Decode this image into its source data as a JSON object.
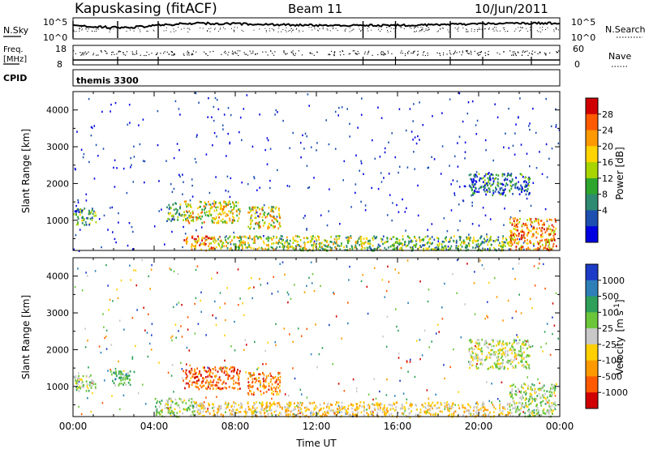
{
  "header": {
    "station": "Kapuskasing (fitACF)",
    "beam": "Beam 11",
    "date": "10/Jun/2011"
  },
  "noise_panel": {
    "left_label": "N.Sky",
    "left_top_tick": "10^5",
    "left_bottom_tick": "10^0",
    "right_top_tick": "10^5",
    "right_bottom_tick": "10^0",
    "right_label": "N.Search"
  },
  "freq_panel": {
    "left_label_line1": "Freq.",
    "left_label_line2": "[MHz]",
    "left_top_tick": "18",
    "left_bottom_tick": "8",
    "right_top_tick": "60",
    "right_bottom_tick": "0",
    "right_label": "Nave"
  },
  "cpid_panel": {
    "label": "CPID",
    "mode": "themis 3300"
  },
  "chart_data": [
    {
      "type": "heatmap",
      "quantity": "power",
      "ylabel": "Slant Range [km]",
      "ylim": [
        180,
        4500
      ],
      "yticks": [
        "1000",
        "2000",
        "3000",
        "4000"
      ],
      "xlim_hours": [
        0,
        24
      ],
      "colorbar": {
        "label": "Power [dB]",
        "ticks": [
          "28",
          "24",
          "20",
          "16",
          "12",
          "8",
          "4"
        ],
        "colors": [
          "#d00000",
          "#ff5a00",
          "#ff9900",
          "#ffd400",
          "#a8d400",
          "#2ea62e",
          "#2e8a70",
          "#1c4fb0",
          "#0000e0"
        ]
      },
      "echo_regions": [
        {
          "t": [
            0.0,
            1.1
          ],
          "r": [
            900,
            1350
          ],
          "level": 0.3
        },
        {
          "t": [
            4.6,
            5.4
          ],
          "r": [
            1000,
            1500
          ],
          "level": 0.35
        },
        {
          "t": [
            5.4,
            8.2
          ],
          "r": [
            950,
            1550
          ],
          "level": 0.6
        },
        {
          "t": [
            8.6,
            10.2
          ],
          "r": [
            800,
            1400
          ],
          "level": 0.55
        },
        {
          "t": [
            5.4,
            7.0
          ],
          "r": [
            200,
            600
          ],
          "level": 0.8
        },
        {
          "t": [
            7.0,
            14.5
          ],
          "r": [
            200,
            600
          ],
          "level": 0.5
        },
        {
          "t": [
            14.5,
            21.5
          ],
          "r": [
            200,
            600
          ],
          "level": 0.4
        },
        {
          "t": [
            21.5,
            23.8
          ],
          "r": [
            200,
            1100
          ],
          "level": 0.75
        },
        {
          "t": [
            19.5,
            22.5
          ],
          "r": [
            1700,
            2300
          ],
          "level": 0.2
        }
      ]
    },
    {
      "type": "heatmap",
      "quantity": "velocity",
      "ylabel": "Slant Range [km]",
      "ylim": [
        180,
        4500
      ],
      "yticks": [
        "1000",
        "2000",
        "3000",
        "4000"
      ],
      "xlabel": "Time UT",
      "xticks": [
        "00:00",
        "04:00",
        "08:00",
        "12:00",
        "16:00",
        "20:00",
        "00:00"
      ],
      "xlim_hours": [
        0,
        24
      ],
      "colorbar": {
        "label_prefix": "Velocity",
        "label_units": "[m s",
        "label_exp": "-1",
        "label_close": "]",
        "ticks": [
          "1000",
          "500",
          "100",
          "25",
          "-25",
          "-100",
          "-500",
          "-1000"
        ],
        "colors": [
          "#1c3cc8",
          "#2e7fb8",
          "#2ea05a",
          "#6cc63a",
          "#c8c8c8",
          "#ffd000",
          "#ff9900",
          "#ff5a00",
          "#d00000"
        ]
      },
      "echo_regions": [
        {
          "t": [
            0.0,
            1.1
          ],
          "r": [
            900,
            1350
          ],
          "level": 0.45
        },
        {
          "t": [
            1.8,
            3.0
          ],
          "r": [
            1050,
            1450
          ],
          "level": 0.3
        },
        {
          "t": [
            5.4,
            8.2
          ],
          "r": [
            950,
            1550
          ],
          "level": 0.85
        },
        {
          "t": [
            8.6,
            10.2
          ],
          "r": [
            800,
            1400
          ],
          "level": 0.8
        },
        {
          "t": [
            4.0,
            6.0
          ],
          "r": [
            200,
            700
          ],
          "level": 0.45
        },
        {
          "t": [
            6.0,
            21.5
          ],
          "r": [
            200,
            600
          ],
          "level": 0.6
        },
        {
          "t": [
            21.5,
            23.8
          ],
          "r": [
            200,
            1100
          ],
          "level": 0.45
        },
        {
          "t": [
            19.5,
            22.5
          ],
          "r": [
            1500,
            2300
          ],
          "level": 0.5
        }
      ]
    }
  ]
}
